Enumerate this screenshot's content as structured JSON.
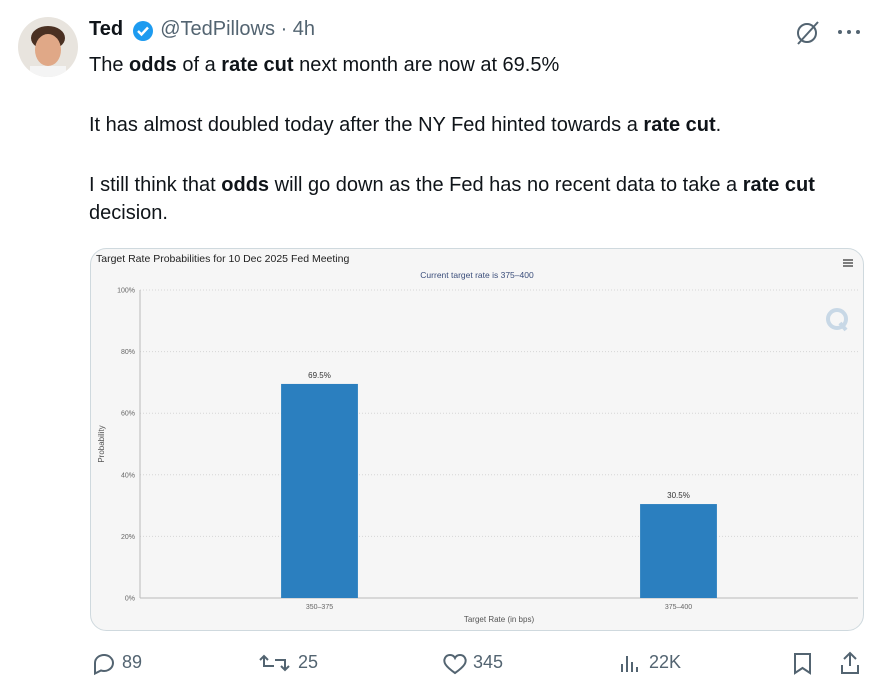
{
  "tweet": {
    "name": "Ted",
    "handle": "@TedPillows",
    "separator": "·",
    "time": "4h",
    "paragraphs": [
      [
        {
          "text": "The "
        },
        {
          "text": "odds",
          "bold": true
        },
        {
          "text": " of a "
        },
        {
          "text": "rate cut",
          "bold": true
        },
        {
          "text": " next month are now at 69.5%"
        }
      ],
      [
        {
          "text": "It has almost doubled today after the NY Fed hinted towards a "
        },
        {
          "text": "rate cut",
          "bold": true
        },
        {
          "text": "."
        }
      ],
      [
        {
          "text": "I still think that "
        },
        {
          "text": "odds",
          "bold": true
        },
        {
          "text": " will go down as the Fed has no recent data to take a "
        },
        {
          "text": "rate cut",
          "bold": true
        },
        {
          "text": " decision."
        }
      ]
    ],
    "replies": "89",
    "reposts": "25",
    "likes": "345",
    "views": "22K"
  },
  "chart_data": {
    "type": "bar",
    "title": "Target Rate Probabilities for 10 Dec 2025 Fed Meeting",
    "subtitle": "Current target rate is 375–400",
    "categories": [
      "350–375",
      "375–400"
    ],
    "values": [
      69.5,
      30.5
    ],
    "value_labels": [
      "69.5%",
      "30.5%"
    ],
    "color": "#2b7fbf",
    "xlabel": "Target Rate (in bps)",
    "ylabel": "Probability",
    "ylim": [
      0,
      100
    ],
    "yticks": [
      {
        "value": 0,
        "label": "0%"
      },
      {
        "value": 20,
        "label": "20%"
      },
      {
        "value": 40,
        "label": "40%"
      },
      {
        "value": 60,
        "label": "60%"
      },
      {
        "value": 80,
        "label": "80%"
      },
      {
        "value": 100,
        "label": "100%"
      }
    ],
    "grid": true
  }
}
